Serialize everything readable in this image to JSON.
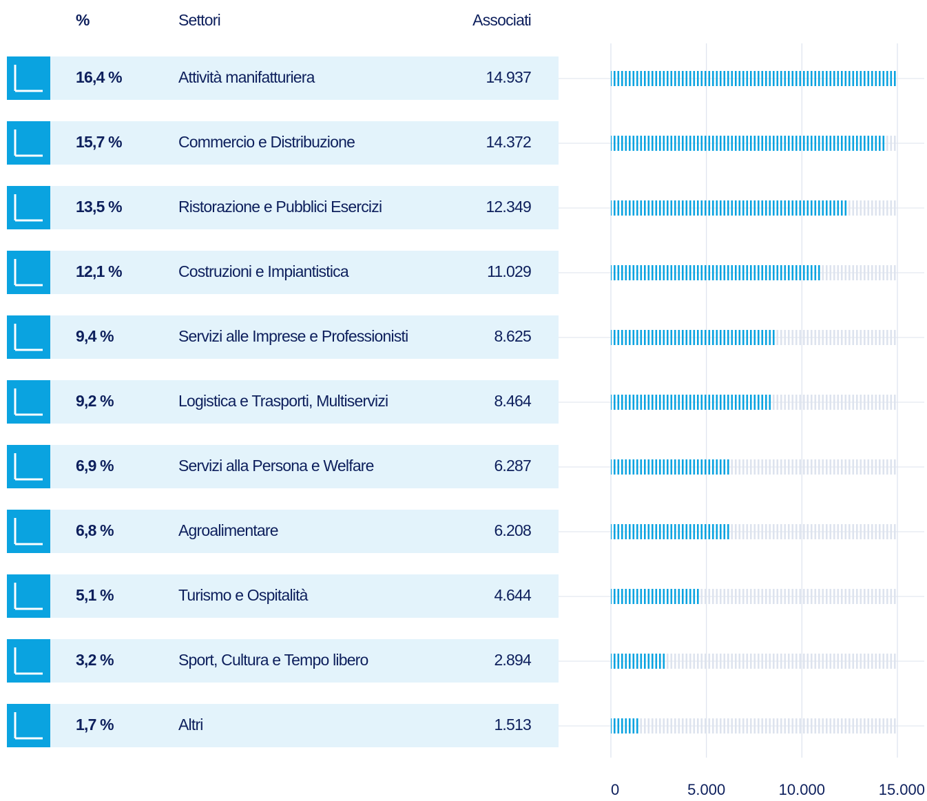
{
  "chart_data": {
    "type": "bar",
    "orientation": "horizontal",
    "columns": [
      "%",
      "Settori",
      "Associati"
    ],
    "categories": [
      "Attività manifatturiera",
      "Commercio e Distribuzione",
      "Ristorazione e Pubblici Esercizi",
      "Costruzioni e Impiantistica",
      "Servizi alle Imprese e Professionisti",
      "Logistica e Trasporti, Multiservizi",
      "Servizi alla Persona e Welfare",
      "Agroalimentare",
      "Turismo e Ospitalità",
      "Sport, Cultura e Tempo libero",
      "Altri"
    ],
    "shares": [
      16.4,
      15.7,
      13.5,
      12.1,
      9.4,
      9.2,
      6.9,
      6.8,
      5.1,
      3.2,
      1.7
    ],
    "share_labels": [
      "16,4 %",
      "15,7 %",
      "13,5 %",
      "12,1 %",
      "9,4 %",
      "9,2 %",
      "6,9 %",
      "6,8 %",
      "5,1 %",
      "3,2 %",
      "1,7 %"
    ],
    "values": [
      14937,
      14372,
      12349,
      11029,
      8625,
      8464,
      6287,
      6208,
      4644,
      2894,
      1513
    ],
    "value_labels": [
      "14.937",
      "14.372",
      "12.349",
      "11.029",
      "8.625",
      "8.464",
      "6.287",
      "6.208",
      "4.644",
      "2.894",
      "1.513"
    ],
    "color": "#0aa3e0",
    "xlim": [
      0,
      15000
    ],
    "xticks": [
      0,
      {
        "value": 5000,
        "label": "5.000"
      },
      {
        "value": 10000,
        "label": "10.000"
      },
      {
        "value": 15000,
        "label": "15.000"
      }
    ],
    "grid": true
  }
}
